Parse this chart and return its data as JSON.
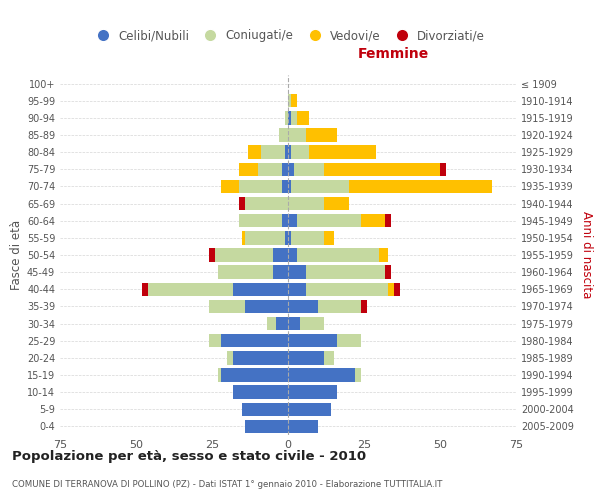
{
  "age_groups": [
    "0-4",
    "5-9",
    "10-14",
    "15-19",
    "20-24",
    "25-29",
    "30-34",
    "35-39",
    "40-44",
    "45-49",
    "50-54",
    "55-59",
    "60-64",
    "65-69",
    "70-74",
    "75-79",
    "80-84",
    "85-89",
    "90-94",
    "95-99",
    "100+"
  ],
  "birth_years": [
    "2005-2009",
    "2000-2004",
    "1995-1999",
    "1990-1994",
    "1985-1989",
    "1980-1984",
    "1975-1979",
    "1970-1974",
    "1965-1969",
    "1960-1964",
    "1955-1959",
    "1950-1954",
    "1945-1949",
    "1940-1944",
    "1935-1939",
    "1930-1934",
    "1925-1929",
    "1920-1924",
    "1915-1919",
    "1910-1914",
    "≤ 1909"
  ],
  "males": {
    "celibi": [
      14,
      15,
      18,
      22,
      18,
      22,
      4,
      14,
      18,
      5,
      5,
      1,
      2,
      0,
      2,
      2,
      1,
      0,
      0,
      0,
      0
    ],
    "coniugati": [
      0,
      0,
      0,
      1,
      2,
      4,
      3,
      12,
      28,
      18,
      19,
      13,
      14,
      14,
      14,
      8,
      8,
      3,
      1,
      0,
      0
    ],
    "vedovi": [
      0,
      0,
      0,
      0,
      0,
      0,
      0,
      0,
      0,
      0,
      0,
      1,
      0,
      0,
      6,
      6,
      4,
      0,
      0,
      0,
      0
    ],
    "divorziati": [
      0,
      0,
      0,
      0,
      0,
      0,
      0,
      0,
      2,
      0,
      2,
      0,
      0,
      2,
      0,
      0,
      0,
      0,
      0,
      0,
      0
    ]
  },
  "females": {
    "nubili": [
      10,
      14,
      16,
      22,
      12,
      16,
      4,
      10,
      6,
      6,
      3,
      1,
      3,
      0,
      1,
      2,
      1,
      0,
      1,
      0,
      0
    ],
    "coniugate": [
      0,
      0,
      0,
      2,
      3,
      8,
      8,
      14,
      27,
      26,
      27,
      11,
      21,
      12,
      19,
      10,
      6,
      6,
      2,
      1,
      0
    ],
    "vedove": [
      0,
      0,
      0,
      0,
      0,
      0,
      0,
      0,
      2,
      0,
      3,
      3,
      8,
      8,
      47,
      38,
      22,
      10,
      4,
      2,
      0
    ],
    "divorziate": [
      0,
      0,
      0,
      0,
      0,
      0,
      0,
      2,
      2,
      2,
      0,
      0,
      2,
      0,
      0,
      2,
      0,
      0,
      0,
      0,
      0
    ]
  },
  "colors": {
    "celibi": "#4472C4",
    "coniugati": "#c5d9a0",
    "vedovi": "#ffc000",
    "divorziati": "#c0000c"
  },
  "title": "Popolazione per età, sesso e stato civile - 2010",
  "subtitle": "COMUNE DI TERRANOVA DI POLLINO (PZ) - Dati ISTAT 1° gennaio 2010 - Elaborazione TUTTITALIA.IT",
  "xlabel_right": "Femmine",
  "ylabel_left": "Fasce di età",
  "ylabel_right": "Anni di nascita",
  "xlim": 75,
  "background_color": "#ffffff",
  "grid_color": "#cccccc"
}
